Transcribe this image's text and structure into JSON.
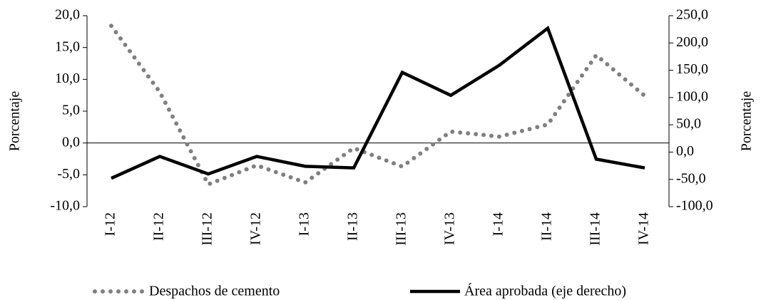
{
  "chart_data": {
    "type": "line",
    "categories": [
      "I-12",
      "II-12",
      "III-12",
      "IV-12",
      "I-13",
      "II-13",
      "III-13",
      "IV-13",
      "I-14",
      "II-14",
      "III-14",
      "IV-14"
    ],
    "y_label": "Porcentaje",
    "y2_label": "Porcentaje",
    "ylim": [
      -10,
      20
    ],
    "yticks": [
      {
        "value": -10,
        "label": "-10,0"
      },
      {
        "value": -5,
        "label": "-5,0"
      },
      {
        "value": 0,
        "label": "0,0"
      },
      {
        "value": 5,
        "label": "5,0"
      },
      {
        "value": 10,
        "label": "10,0"
      },
      {
        "value": 15,
        "label": "15,0"
      },
      {
        "value": 20,
        "label": "20,0"
      }
    ],
    "y2lim": [
      -100,
      250
    ],
    "y2ticks": [
      {
        "value": -100,
        "label": "-100,0"
      },
      {
        "value": -50,
        "label": "-50,0"
      },
      {
        "value": 0,
        "label": "0,0"
      },
      {
        "value": 50,
        "label": "50,0"
      },
      {
        "value": 100,
        "label": "100,0"
      },
      {
        "value": 150,
        "label": "150,0"
      },
      {
        "value": 200,
        "label": "200,0"
      },
      {
        "value": 250,
        "label": "250,0"
      }
    ],
    "series": [
      {
        "name": "Despachos de cemento",
        "color": "#808080",
        "style": "dotted",
        "values": [
          18.4,
          8.0,
          -6.5,
          -3.5,
          -6.2,
          -0.8,
          -3.7,
          1.8,
          1.0,
          2.9,
          13.8,
          7.4
        ]
      },
      {
        "name": "Área aprobada (eje derecho)",
        "color": "#000000",
        "style": "solid",
        "axis": "y2",
        "values": [
          -48,
          -8,
          -40,
          -8,
          -26,
          -29,
          146,
          104,
          159,
          227,
          -13,
          -29
        ]
      }
    ]
  }
}
